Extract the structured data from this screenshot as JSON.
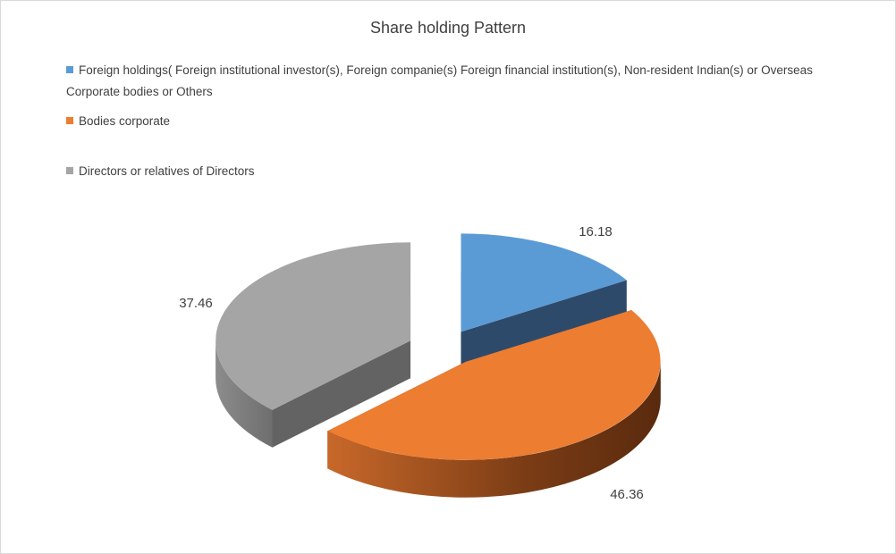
{
  "chart_data": {
    "type": "pie",
    "style": "3d-exploded",
    "title": "Share holding Pattern",
    "legend_position": "top-left",
    "series": [
      {
        "name": "Foreign holdings( Foreign institutional investor(s), Foreign companie(s) Foreign financial institution(s),  Non-resident Indian(s) or Overseas Corporate bodies or Others",
        "value": 16.18,
        "label": "16.18",
        "color": "#5B9BD5",
        "dark": "#2E4A6B"
      },
      {
        "name": "Bodies corporate",
        "value": 46.36,
        "label": "46.36",
        "color": "#ED7D31",
        "dark": "#6A3312"
      },
      {
        "name": "Directors or relatives of Directors",
        "value": 37.46,
        "label": "37.46",
        "color": "#A5A5A5",
        "dark": "#636363"
      }
    ]
  }
}
